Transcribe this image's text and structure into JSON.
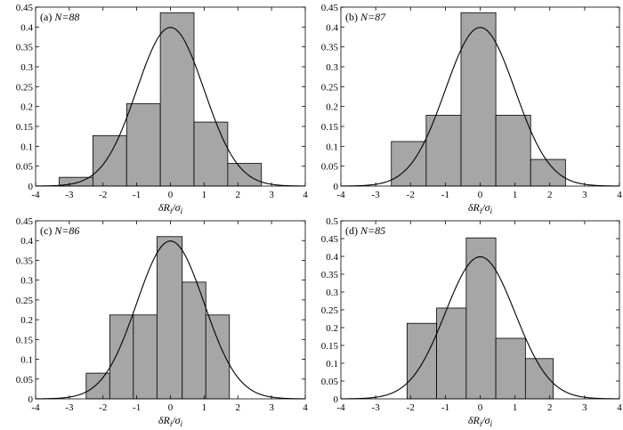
{
  "chart_data": [
    {
      "type": "bar",
      "panel_label": "(a) ",
      "n_label": "N=88",
      "xlabel": {
        "prefix": "δR",
        "sub": "i",
        "mid": "/σ",
        "sub2": "i"
      },
      "xlim": [
        -4,
        4
      ],
      "ylim": [
        0,
        0.45
      ],
      "xticks": [
        -4,
        -3,
        -2,
        -1,
        0,
        1,
        2,
        3,
        4
      ],
      "yticks": [
        0,
        0.05,
        0.1,
        0.15,
        0.2,
        0.25,
        0.3,
        0.35,
        0.4,
        0.45
      ],
      "ytick_labels": [
        "0",
        "0.05",
        "0.1",
        "0.15",
        "0.2",
        "0.25",
        "0.3",
        "0.35",
        "0.4",
        "0.45"
      ],
      "bin_edges": [
        -3.3,
        -2.3,
        -1.3,
        -0.3,
        0.7,
        1.7,
        2.7
      ],
      "values": [
        0.022,
        0.127,
        0.207,
        0.436,
        0.161,
        0.057
      ],
      "overlay": "standard normal pdf"
    },
    {
      "type": "bar",
      "panel_label": "(b) ",
      "n_label": "N=87",
      "xlabel": {
        "prefix": "δR",
        "sub": "i",
        "mid": "/σ",
        "sub2": "i"
      },
      "xlim": [
        -4,
        4
      ],
      "ylim": [
        0,
        0.45
      ],
      "xticks": [
        -4,
        -3,
        -2,
        -1,
        0,
        1,
        2,
        3,
        4
      ],
      "yticks": [
        0,
        0.05,
        0.1,
        0.15,
        0.2,
        0.25,
        0.3,
        0.35,
        0.4,
        0.45
      ],
      "ytick_labels": [
        "0",
        "0.05",
        "0.1",
        "0.15",
        "0.2",
        "0.25",
        "0.3",
        "0.35",
        "0.4",
        "0.45"
      ],
      "bin_edges": [
        -2.55,
        -1.55,
        -0.55,
        0.45,
        1.45,
        2.45
      ],
      "values": [
        0.112,
        0.178,
        0.436,
        0.178,
        0.067
      ],
      "overlay": "standard normal pdf"
    },
    {
      "type": "bar",
      "panel_label": "(c) ",
      "n_label": "N=86",
      "xlabel": {
        "prefix": "δR",
        "sub": "i",
        "mid": "/σ",
        "sub2": "i"
      },
      "xlim": [
        -4,
        4
      ],
      "ylim": [
        0,
        0.45
      ],
      "xticks": [
        -4,
        -3,
        -2,
        -1,
        0,
        1,
        2,
        3,
        4
      ],
      "yticks": [
        0,
        0.05,
        0.1,
        0.15,
        0.2,
        0.25,
        0.3,
        0.35,
        0.4,
        0.45
      ],
      "ytick_labels": [
        "0",
        "0.05",
        "0.1",
        "0.15",
        "0.2",
        "0.25",
        "0.3",
        "0.35",
        "0.4",
        "0.45"
      ],
      "bin_edges": [
        -2.5,
        -1.8,
        -1.1,
        -0.4,
        0.35,
        1.05,
        1.75
      ],
      "values": [
        0.065,
        0.212,
        0.212,
        0.41,
        0.295,
        0.212
      ],
      "overlay": "standard normal pdf"
    },
    {
      "type": "bar",
      "panel_label": "(d) ",
      "n_label": "N=85",
      "xlabel": {
        "prefix": "δR",
        "sub": "i",
        "mid": "/σ",
        "sub2": "i"
      },
      "xlim": [
        -4,
        4
      ],
      "ylim": [
        0,
        0.5
      ],
      "xticks": [
        -4,
        -3,
        -2,
        -1,
        0,
        1,
        2,
        3,
        4
      ],
      "yticks": [
        0,
        0.05,
        0.1,
        0.15,
        0.2,
        0.25,
        0.3,
        0.35,
        0.4,
        0.45,
        0.5
      ],
      "ytick_labels": [
        "0",
        "0.05",
        "0.1",
        "0.15",
        "0.2",
        "0.25",
        "0.3",
        "0.35",
        "0.4",
        "0.45",
        "0.5"
      ],
      "bin_edges": [
        -2.1,
        -1.25,
        -0.4,
        0.45,
        1.3,
        2.1
      ],
      "values": [
        0.212,
        0.255,
        0.452,
        0.17,
        0.113
      ],
      "overlay": "standard normal pdf"
    }
  ]
}
